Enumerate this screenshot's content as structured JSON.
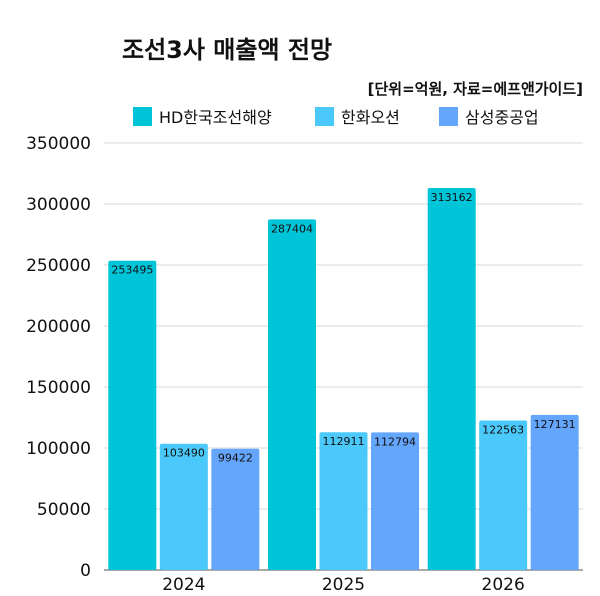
{
  "chart_data": {
    "type": "bar",
    "title": "조선3사 매출액 전망",
    "subtitle": "[단위=억원, 자료=에프앤가이드]",
    "categories": [
      "2024",
      "2025",
      "2026"
    ],
    "series": [
      {
        "name": "HD한국조선해양",
        "color": "#00c4d8",
        "values": [
          253495,
          287404,
          313162
        ]
      },
      {
        "name": "한화오션",
        "color": "#4cc9fb",
        "values": [
          103490,
          112911,
          122563
        ]
      },
      {
        "name": "삼성중공업",
        "color": "#64a6fc",
        "values": [
          99422,
          112794,
          127131
        ]
      }
    ],
    "data_labels": [
      [
        "253495",
        "287404",
        "313162"
      ],
      [
        "103490",
        "112911",
        "122563"
      ],
      [
        "99422",
        "112794",
        "127131"
      ]
    ],
    "yticks": [
      "0",
      "50000",
      "100000",
      "150000",
      "200000",
      "250000",
      "300000",
      "350000"
    ],
    "ylim": [
      0,
      350000
    ],
    "grid": true,
    "legend_position": "top"
  }
}
